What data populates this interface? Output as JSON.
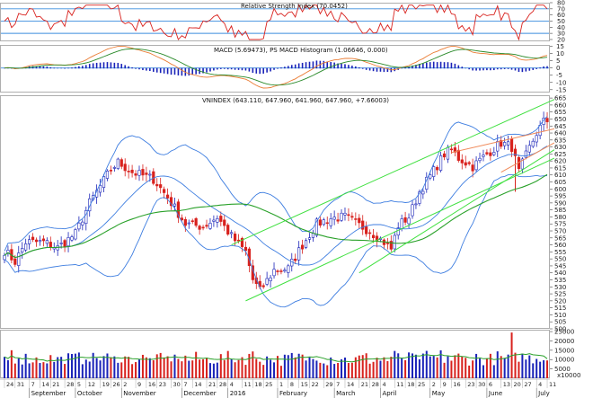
{
  "chart_data": {
    "type": "candlestick",
    "colors": {
      "up": "#1a23b8",
      "down": "#d8211d",
      "bollinger": "#3d7de0",
      "ma": "#2aa12a",
      "channel": "#3fe03f",
      "resistance": "#f08a5a",
      "rsi": "#d8211d",
      "rsi_levels": "#3a8dde",
      "macd": "#ea7b33",
      "macd_signal": "#2a8a2a",
      "macd_hist": "#1a23b8",
      "volume_ma": "#2aa12a"
    },
    "rsi": {
      "title": "Relative Strength Index (70.0452)",
      "ticks": [
        "80",
        "70",
        "60",
        "50",
        "40",
        "30",
        "20"
      ],
      "levels": [
        30,
        50,
        70
      ],
      "ylim": [
        17,
        80
      ]
    },
    "macd": {
      "title": "MACD (5.69473), PS MACD Histogram (1.06646, 0.000)",
      "ticks": [
        "15",
        "10",
        "5",
        "0",
        "-5",
        "-10",
        "-15"
      ],
      "ylim": [
        -17,
        16
      ]
    },
    "price": {
      "title": "VNINDEX (643.110, 647.960, 641.960, 647.960, +7.66003)",
      "ticks": [
        "665",
        "660",
        "655",
        "650",
        "645",
        "640",
        "635",
        "630",
        "625",
        "620",
        "615",
        "610",
        "605",
        "600",
        "595",
        "590",
        "585",
        "580",
        "575",
        "570",
        "565",
        "560",
        "555",
        "550",
        "545",
        "540",
        "535",
        "530",
        "525",
        "520",
        "515",
        "510",
        "505",
        "500"
      ],
      "ylim": [
        500,
        667
      ],
      "anchors": [
        [
          0,
          556
        ],
        [
          3,
          548
        ],
        [
          6,
          562
        ],
        [
          11,
          562
        ],
        [
          15,
          558
        ],
        [
          20,
          568
        ],
        [
          24,
          590
        ],
        [
          30,
          614
        ],
        [
          32,
          619
        ],
        [
          36,
          612
        ],
        [
          42,
          607
        ],
        [
          46,
          594
        ],
        [
          51,
          575
        ],
        [
          56,
          573
        ],
        [
          60,
          580
        ],
        [
          64,
          566
        ],
        [
          68,
          555
        ],
        [
          70,
          535
        ],
        [
          72,
          527
        ],
        [
          76,
          542
        ],
        [
          80,
          543
        ],
        [
          84,
          560
        ],
        [
          88,
          575
        ],
        [
          92,
          579
        ],
        [
          96,
          580
        ],
        [
          100,
          574
        ],
        [
          103,
          570
        ],
        [
          107,
          562
        ],
        [
          109,
          557
        ],
        [
          111,
          574
        ],
        [
          114,
          580
        ],
        [
          117,
          598
        ],
        [
          121,
          613
        ],
        [
          124,
          625
        ],
        [
          126,
          628
        ],
        [
          128,
          622
        ],
        [
          132,
          616
        ],
        [
          136,
          625
        ],
        [
          140,
          633
        ],
        [
          143,
          630
        ],
        [
          145,
          612
        ],
        [
          147,
          624
        ],
        [
          150,
          640
        ],
        [
          152,
          648
        ]
      ]
    },
    "volume": {
      "ticks": [
        "25000",
        "20000",
        "15000",
        "10000",
        "5000"
      ],
      "unit": "x10000",
      "ylim": [
        0,
        26000
      ]
    },
    "x_dates": [
      "24",
      "31",
      "7",
      "14",
      "21",
      "28",
      "5",
      "12",
      "19",
      "26",
      "2",
      "9",
      "16",
      "23",
      "30",
      "7",
      "14",
      "21",
      "28",
      "4",
      "11",
      "18",
      "25",
      "1",
      "8",
      "15",
      "22",
      "29",
      "7",
      "14",
      "21",
      "28",
      "4",
      "11",
      "18",
      "25",
      "2",
      "9",
      "16",
      "23",
      "30",
      "6",
      "13",
      "20",
      "27",
      "4",
      "11"
    ],
    "months": [
      "September",
      "October",
      "November",
      "December",
      "2016",
      "February",
      "March",
      "April",
      "May",
      "June",
      "July"
    ]
  }
}
